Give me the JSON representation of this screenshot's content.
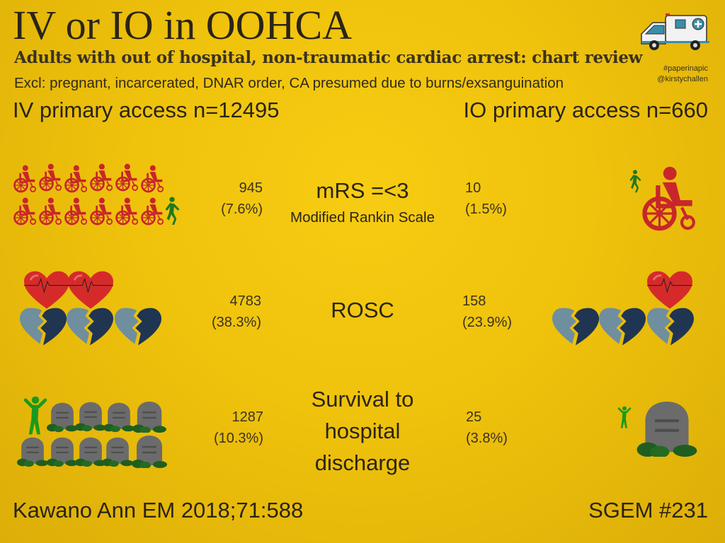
{
  "header": {
    "title": "IV or IO in OOHCA",
    "subtitle": "Adults with out of hospital, non-traumatic cardiac arrest: chart review",
    "exclusions": "Excl: pregnant, incarcerated, DNAR order, CA presumed due to burns/exsanguination",
    "hashtag": "#paperinapic",
    "handle": "@kirstychallen"
  },
  "groups": {
    "iv": "IV primary access n=12495",
    "io": "IO primary access n=660"
  },
  "outcomes": [
    {
      "label": "mRS =<3",
      "sublabel": "Modified Rankin Scale",
      "iv_count": "945",
      "iv_pct": "(7.6%)",
      "io_count": "10",
      "io_pct": "(1.5%)"
    },
    {
      "label": "ROSC",
      "iv_count": "4783",
      "iv_pct": "(38.3%)",
      "io_count": "158",
      "io_pct": "(23.9%)"
    },
    {
      "label_lines": [
        "Survival to",
        "hospital",
        "discharge"
      ],
      "iv_count": "1287",
      "iv_pct": "(10.3%)",
      "io_count": "25",
      "io_pct": "(3.8%)"
    }
  ],
  "footer": {
    "citation": "Kawano Ann EM 2018;71:588",
    "sgem": "SGEM #231"
  },
  "colors": {
    "background": "#f2c40e",
    "wheelchair": "#c8262b",
    "walker": "#1e7a1e",
    "heart": "#d62a2a",
    "broken_heart_light": "#6f8f9e",
    "broken_heart_dark": "#1f3552",
    "tombstone": "#6b6b6b",
    "grass": "#1f5e1f"
  }
}
